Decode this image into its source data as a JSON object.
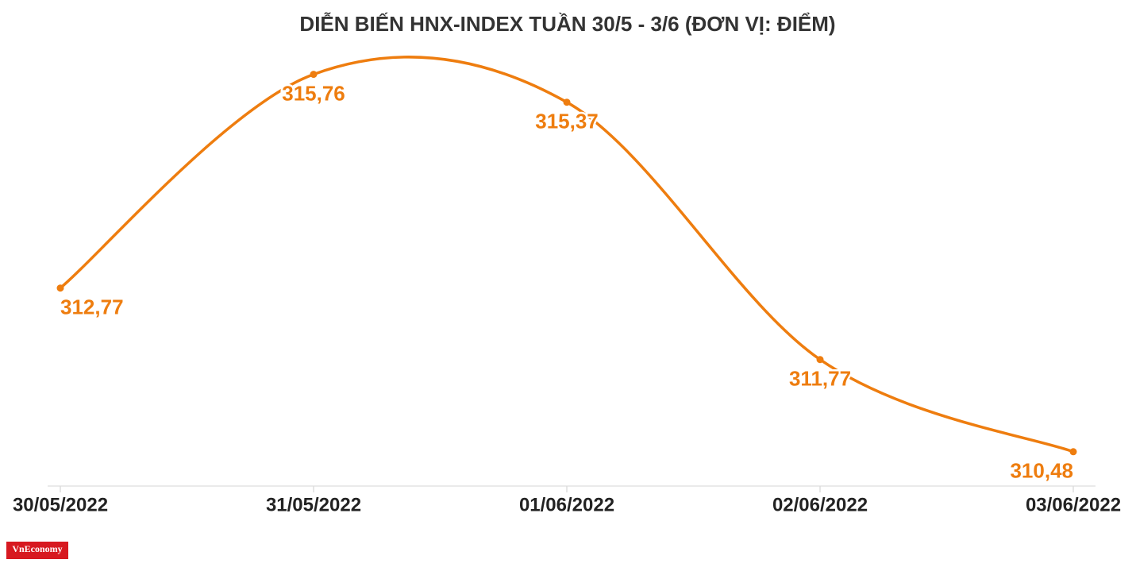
{
  "chart_data": {
    "type": "line",
    "title": "DIỄN BIẾN HNX-INDEX TUẦN 30/5 - 3/6 (ĐƠN VỊ: ĐIỂM)",
    "categories": [
      "30/05/2022",
      "31/05/2022",
      "01/06/2022",
      "02/06/2022",
      "03/06/2022"
    ],
    "values": [
      312.77,
      315.76,
      315.37,
      311.77,
      310.48
    ],
    "value_labels": [
      "312,77",
      "315,76",
      "315,37",
      "311,77",
      "310,48"
    ],
    "color": "#ee7d0f",
    "ylim": [
      310,
      316.4
    ],
    "smooth": true
  },
  "logo": "VnEconomy"
}
